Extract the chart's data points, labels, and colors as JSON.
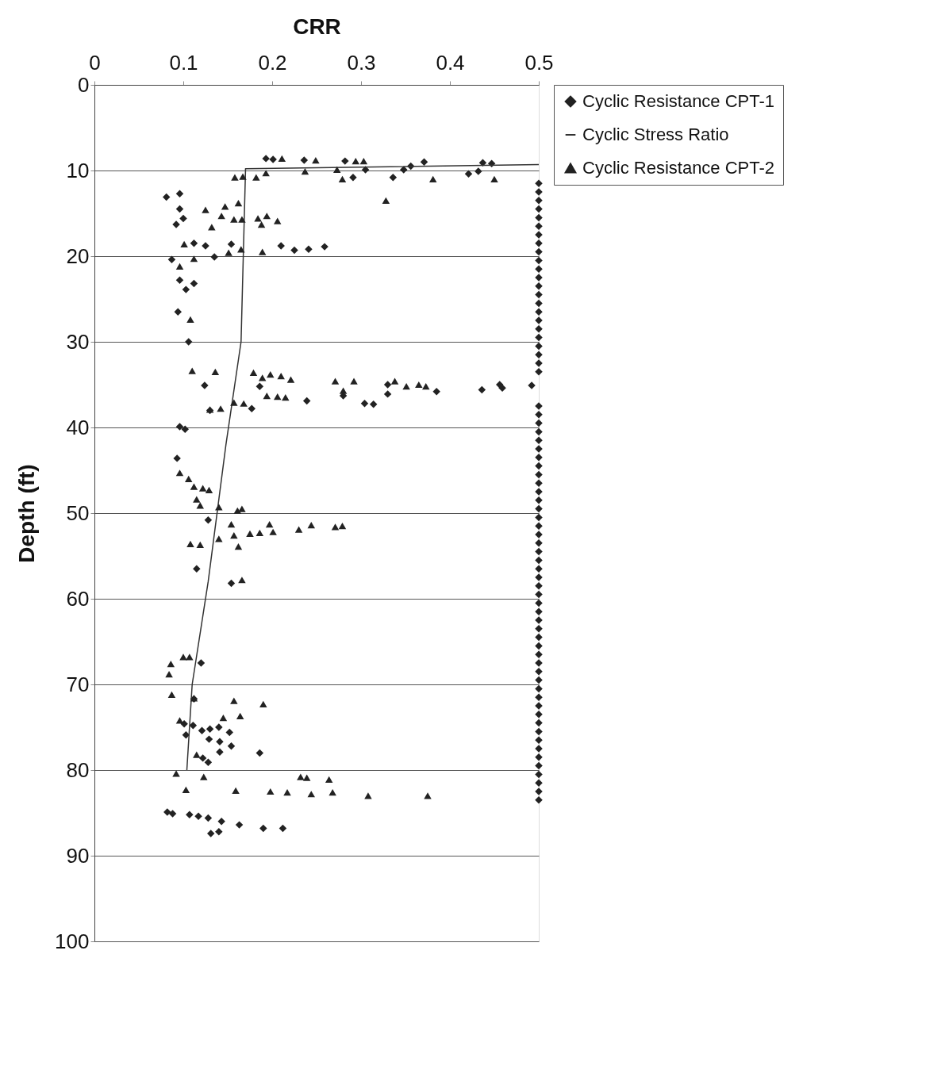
{
  "chart_data": {
    "type": "scatter",
    "xlabel": "CRR",
    "ylabel": "Depth (ft)",
    "xlim": [
      0,
      0.5
    ],
    "xticks": [
      0,
      0.1,
      0.2,
      0.3,
      0.4,
      0.5
    ],
    "ylim": [
      100,
      0
    ],
    "yticks": [
      0,
      10,
      20,
      30,
      40,
      50,
      60,
      70,
      80,
      90,
      100
    ],
    "grid": "y",
    "legend": "right",
    "series": [
      {
        "name": "Cyclic Resistance CPT-1",
        "marker": "diamond",
        "color": "#222222",
        "x": [
          0.193,
          0.201,
          0.236,
          0.282,
          0.305,
          0.291,
          0.336,
          0.348,
          0.356,
          0.371,
          0.437,
          0.447,
          0.421,
          0.432,
          0.081,
          0.096,
          0.096,
          0.092,
          0.1,
          0.21,
          0.225,
          0.241,
          0.259,
          0.154,
          0.112,
          0.125,
          0.135,
          0.087,
          0.096,
          0.112,
          0.103,
          0.094,
          0.106,
          0.124,
          0.186,
          0.177,
          0.28,
          0.304,
          0.314,
          0.33,
          0.33,
          0.385,
          0.436,
          0.456,
          0.459,
          0.492,
          0.239,
          0.13,
          0.102,
          0.096,
          0.093,
          0.128,
          0.115,
          0.154,
          0.12,
          0.112,
          0.101,
          0.111,
          0.103,
          0.121,
          0.13,
          0.14,
          0.152,
          0.129,
          0.141,
          0.154,
          0.141,
          0.186,
          0.122,
          0.128,
          0.082,
          0.088,
          0.107,
          0.117,
          0.128,
          0.143,
          0.163,
          0.19,
          0.212,
          0.131,
          0.14,
          0.5,
          0.5,
          0.5,
          0.5,
          0.5,
          0.5,
          0.5,
          0.5,
          0.5,
          0.5,
          0.5,
          0.5,
          0.5,
          0.5,
          0.5,
          0.5,
          0.5,
          0.5,
          0.5,
          0.5,
          0.5,
          0.5,
          0.5,
          0.5,
          0.5,
          0.5,
          0.5,
          0.5,
          0.5,
          0.5,
          0.5,
          0.5,
          0.5,
          0.5,
          0.5,
          0.5,
          0.5,
          0.5,
          0.5,
          0.5,
          0.5,
          0.5,
          0.5,
          0.5,
          0.5,
          0.5,
          0.5,
          0.5,
          0.5,
          0.5,
          0.5,
          0.5,
          0.5,
          0.5,
          0.5,
          0.5,
          0.5,
          0.5,
          0.5,
          0.5,
          0.5,
          0.5,
          0.5,
          0.5,
          0.5,
          0.5,
          0.5,
          0.5,
          0.5,
          0.5
        ],
        "values": [
          8.6,
          8.7,
          8.8,
          8.9,
          9.9,
          10.8,
          10.8,
          9.9,
          9.5,
          9.0,
          9.1,
          9.2,
          10.4,
          10.1,
          13.1,
          12.7,
          14.5,
          16.3,
          15.6,
          18.8,
          19.3,
          19.2,
          18.9,
          18.6,
          18.5,
          18.8,
          20.1,
          20.4,
          22.8,
          23.2,
          23.9,
          26.5,
          30.0,
          35.1,
          35.2,
          37.8,
          36.3,
          37.2,
          37.3,
          35.0,
          36.1,
          35.8,
          35.6,
          35.0,
          35.4,
          35.1,
          36.9,
          38.0,
          40.2,
          39.9,
          43.6,
          50.8,
          56.5,
          58.2,
          67.5,
          71.7,
          74.6,
          74.8,
          75.9,
          75.4,
          75.2,
          75.0,
          75.6,
          76.4,
          76.7,
          77.2,
          77.9,
          78.0,
          78.6,
          79.1,
          84.9,
          85.1,
          85.2,
          85.4,
          85.6,
          86.0,
          86.4,
          86.8,
          86.8,
          87.4,
          87.2,
          11.5,
          12.5,
          13.5,
          14.5,
          15.5,
          16.5,
          17.5,
          18.5,
          19.5,
          20.5,
          21.5,
          22.5,
          23.5,
          24.5,
          25.5,
          26.5,
          27.5,
          28.5,
          29.5,
          30.5,
          31.5,
          32.5,
          33.5,
          37.5,
          38.5,
          39.5,
          40.5,
          41.5,
          42.5,
          43.5,
          44.5,
          45.5,
          46.5,
          47.5,
          48.5,
          49.5,
          50.5,
          51.5,
          52.5,
          53.5,
          54.5,
          55.5,
          56.5,
          57.5,
          58.5,
          59.5,
          60.5,
          61.5,
          62.5,
          63.5,
          64.5,
          65.5,
          66.5,
          67.5,
          68.5,
          69.5,
          70.5,
          71.5,
          72.5,
          73.5,
          74.5,
          75.5,
          76.5,
          77.5,
          78.5,
          79.5,
          80.5,
          81.5,
          82.5,
          83.5
        ]
      },
      {
        "name": "Cyclic Stress Ratio",
        "type": "line",
        "marker": "none",
        "color": "#333333",
        "x": [
          0.5,
          0.17,
          0.17,
          0.165,
          0.148,
          0.128,
          0.11,
          0.104
        ],
        "values": [
          9.3,
          9.8,
          10,
          30,
          42,
          58,
          70,
          80
        ]
      },
      {
        "name": "Cyclic Resistance CPT-2",
        "marker": "triangle",
        "color": "#222222",
        "x": [
          0.211,
          0.249,
          0.294,
          0.303,
          0.158,
          0.167,
          0.182,
          0.193,
          0.237,
          0.273,
          0.279,
          0.381,
          0.45,
          0.328,
          0.125,
          0.147,
          0.162,
          0.143,
          0.132,
          0.157,
          0.166,
          0.184,
          0.194,
          0.206,
          0.188,
          0.101,
          0.189,
          0.165,
          0.151,
          0.112,
          0.096,
          0.108,
          0.11,
          0.136,
          0.179,
          0.189,
          0.198,
          0.21,
          0.221,
          0.271,
          0.292,
          0.338,
          0.351,
          0.365,
          0.373,
          0.28,
          0.194,
          0.206,
          0.215,
          0.168,
          0.157,
          0.142,
          0.13,
          0.096,
          0.106,
          0.112,
          0.122,
          0.129,
          0.115,
          0.119,
          0.14,
          0.161,
          0.166,
          0.154,
          0.157,
          0.162,
          0.175,
          0.186,
          0.197,
          0.201,
          0.23,
          0.244,
          0.271,
          0.279,
          0.108,
          0.119,
          0.14,
          0.166,
          0.084,
          0.086,
          0.1,
          0.107,
          0.087,
          0.157,
          0.164,
          0.145,
          0.19,
          0.112,
          0.096,
          0.115,
          0.092,
          0.123,
          0.232,
          0.239,
          0.264,
          0.103,
          0.159,
          0.198,
          0.217,
          0.244,
          0.268,
          0.308,
          0.375
        ],
        "values": [
          8.6,
          8.8,
          8.9,
          8.9,
          10.8,
          10.7,
          10.8,
          10.3,
          10.1,
          9.9,
          11.0,
          11.0,
          11.0,
          13.5,
          14.6,
          14.2,
          13.8,
          15.3,
          16.6,
          15.7,
          15.7,
          15.6,
          15.3,
          15.9,
          16.3,
          18.6,
          19.5,
          19.2,
          19.6,
          20.3,
          21.2,
          27.4,
          33.4,
          33.5,
          33.6,
          34.2,
          33.8,
          34.0,
          34.4,
          34.6,
          34.6,
          34.6,
          35.2,
          35.0,
          35.2,
          35.7,
          36.3,
          36.4,
          36.5,
          37.2,
          37.1,
          37.8,
          37.9,
          45.3,
          46.0,
          46.9,
          47.1,
          47.3,
          48.4,
          49.1,
          49.3,
          49.7,
          49.5,
          51.3,
          52.6,
          53.9,
          52.4,
          52.3,
          51.3,
          52.2,
          51.9,
          51.4,
          51.6,
          51.5,
          53.6,
          53.7,
          53.0,
          57.8,
          68.8,
          67.6,
          66.8,
          66.8,
          71.2,
          71.9,
          73.7,
          73.9,
          72.3,
          71.6,
          74.2,
          78.2,
          80.4,
          80.8,
          80.8,
          80.9,
          81.1,
          82.3,
          82.4,
          82.5,
          82.6,
          82.8,
          82.6,
          83.0,
          83.0
        ]
      }
    ]
  }
}
